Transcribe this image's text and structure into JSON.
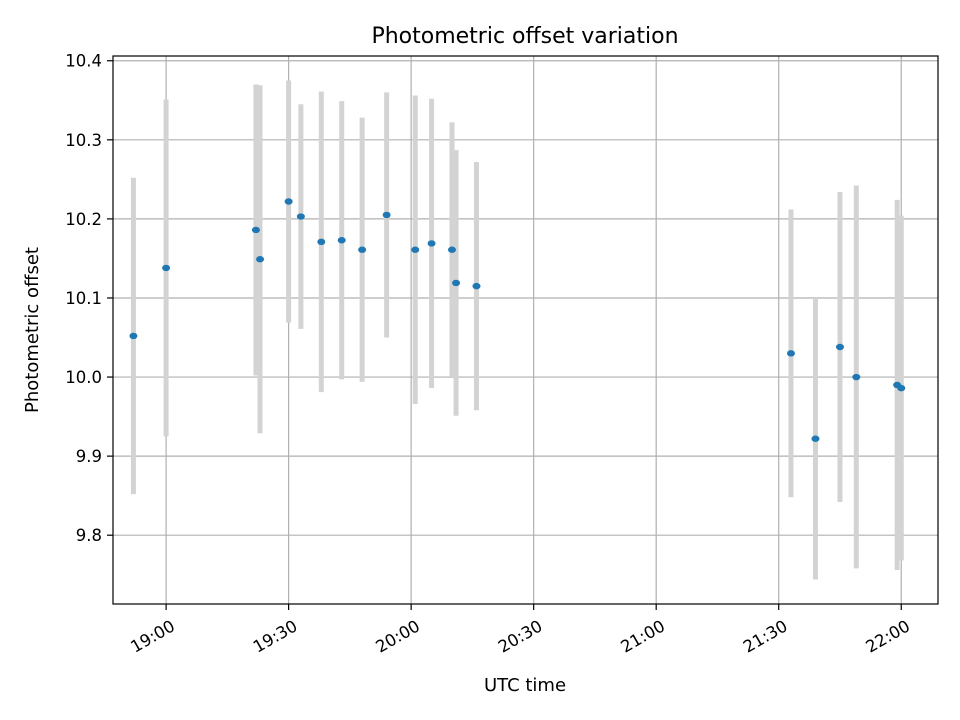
{
  "chart_data": {
    "type": "scatter",
    "title": "Photometric offset variation",
    "xlabel": "UTC time",
    "ylabel": "Photometric offset",
    "x_axis_type": "time",
    "x_range": [
      "18:47",
      "22:09"
    ],
    "ylim": [
      9.713,
      10.406
    ],
    "grid": true,
    "x_ticks": [
      "19:00",
      "19:30",
      "20:00",
      "20:30",
      "21:00",
      "21:30",
      "22:00"
    ],
    "y_ticks": [
      9.8,
      9.9,
      10.0,
      10.1,
      10.2,
      10.3,
      10.4
    ],
    "y_tick_labels": [
      "9.8",
      "9.9",
      "10.0",
      "10.1",
      "10.2",
      "10.3",
      "10.4"
    ],
    "colors": {
      "points": "#1f77b4",
      "errorbars": "#d3d3d3",
      "grid": "#b0b0b0"
    },
    "points": [
      {
        "x": "18:52",
        "y": 10.052,
        "err": 0.2
      },
      {
        "x": "19:00",
        "y": 10.138,
        "err": 0.213
      },
      {
        "x": "19:22",
        "y": 10.186,
        "err": 0.184
      },
      {
        "x": "19:23",
        "y": 10.149,
        "err": 0.22
      },
      {
        "x": "19:30",
        "y": 10.222,
        "err": 0.153
      },
      {
        "x": "19:33",
        "y": 10.203,
        "err": 0.142
      },
      {
        "x": "19:38",
        "y": 10.171,
        "err": 0.19
      },
      {
        "x": "19:43",
        "y": 10.173,
        "err": 0.176
      },
      {
        "x": "19:48",
        "y": 10.161,
        "err": 0.167
      },
      {
        "x": "19:54",
        "y": 10.205,
        "err": 0.155
      },
      {
        "x": "20:01",
        "y": 10.161,
        "err": 0.195
      },
      {
        "x": "20:05",
        "y": 10.169,
        "err": 0.183
      },
      {
        "x": "20:10",
        "y": 10.161,
        "err": 0.161
      },
      {
        "x": "20:11",
        "y": 10.119,
        "err": 0.168
      },
      {
        "x": "20:16",
        "y": 10.115,
        "err": 0.157
      },
      {
        "x": "21:33",
        "y": 10.03,
        "err": 0.182
      },
      {
        "x": "21:39",
        "y": 9.922,
        "err": 0.178
      },
      {
        "x": "21:45",
        "y": 10.038,
        "err": 0.196
      },
      {
        "x": "21:49",
        "y": 10.0,
        "err": 0.242
      },
      {
        "x": "21:59",
        "y": 9.99,
        "err": 0.234
      },
      {
        "x": "22:00",
        "y": 9.986,
        "err": 0.218
      }
    ]
  }
}
